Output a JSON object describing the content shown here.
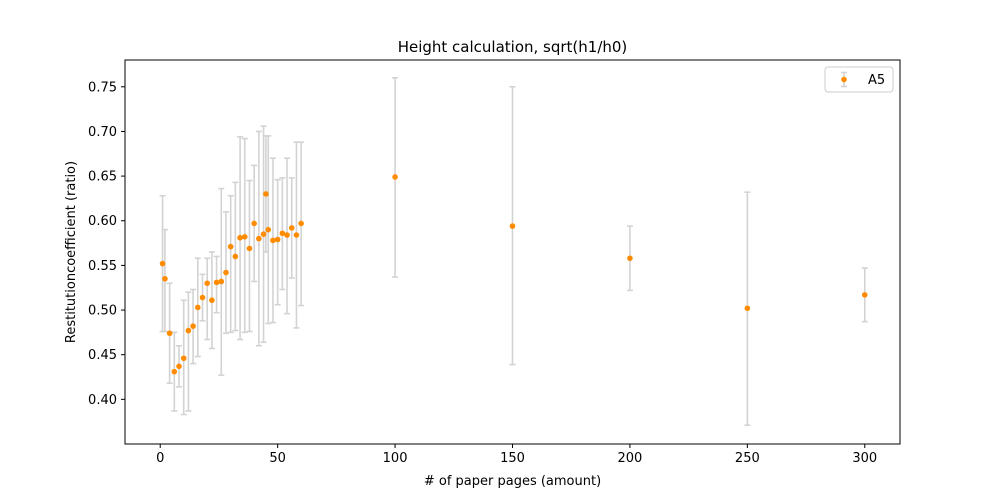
{
  "chart_data": {
    "type": "scatter",
    "title": "Height calculation, sqrt(h1/h0)",
    "xlabel": "# of paper pages (amount)",
    "ylabel": "Restitutioncoefficient (ratio)",
    "xlim": [
      -15,
      315
    ],
    "ylim": [
      0.35,
      0.78
    ],
    "xticks": [
      0,
      50,
      100,
      150,
      200,
      250,
      300
    ],
    "yticks": [
      0.4,
      0.45,
      0.5,
      0.55,
      0.6,
      0.65,
      0.7,
      0.75
    ],
    "grid": false,
    "legend": "top-right",
    "marker_color": "#ff8c00",
    "errorbar_color": "#d3d3d3",
    "series": [
      {
        "name": "A5",
        "points": [
          {
            "x": 1,
            "y": 0.552,
            "lo": 0.476,
            "hi": 0.628
          },
          {
            "x": 2,
            "y": 0.535,
            "lo": 0.476,
            "hi": 0.59
          },
          {
            "x": 4,
            "y": 0.474,
            "lo": 0.418,
            "hi": 0.53
          },
          {
            "x": 6,
            "y": 0.431,
            "lo": 0.387,
            "hi": 0.475
          },
          {
            "x": 8,
            "y": 0.437,
            "lo": 0.414,
            "hi": 0.46
          },
          {
            "x": 10,
            "y": 0.446,
            "lo": 0.383,
            "hi": 0.511
          },
          {
            "x": 12,
            "y": 0.477,
            "lo": 0.387,
            "hi": 0.52
          },
          {
            "x": 14,
            "y": 0.482,
            "lo": 0.44,
            "hi": 0.523
          },
          {
            "x": 16,
            "y": 0.503,
            "lo": 0.448,
            "hi": 0.558
          },
          {
            "x": 18,
            "y": 0.514,
            "lo": 0.488,
            "hi": 0.54
          },
          {
            "x": 20,
            "y": 0.53,
            "lo": 0.467,
            "hi": 0.558
          },
          {
            "x": 22,
            "y": 0.511,
            "lo": 0.457,
            "hi": 0.565
          },
          {
            "x": 24,
            "y": 0.531,
            "lo": 0.497,
            "hi": 0.56
          },
          {
            "x": 26,
            "y": 0.532,
            "lo": 0.427,
            "hi": 0.636
          },
          {
            "x": 28,
            "y": 0.542,
            "lo": 0.474,
            "hi": 0.61
          },
          {
            "x": 30,
            "y": 0.571,
            "lo": 0.475,
            "hi": 0.628
          },
          {
            "x": 32,
            "y": 0.56,
            "lo": 0.477,
            "hi": 0.643
          },
          {
            "x": 34,
            "y": 0.581,
            "lo": 0.467,
            "hi": 0.694
          },
          {
            "x": 36,
            "y": 0.582,
            "lo": 0.475,
            "hi": 0.692
          },
          {
            "x": 38,
            "y": 0.569,
            "lo": 0.476,
            "hi": 0.645
          },
          {
            "x": 40,
            "y": 0.597,
            "lo": 0.532,
            "hi": 0.662
          },
          {
            "x": 42,
            "y": 0.58,
            "lo": 0.46,
            "hi": 0.7
          },
          {
            "x": 44,
            "y": 0.585,
            "lo": 0.464,
            "hi": 0.706
          },
          {
            "x": 45,
            "y": 0.63,
            "lo": 0.565,
            "hi": 0.695
          },
          {
            "x": 46,
            "y": 0.59,
            "lo": 0.485,
            "hi": 0.695
          },
          {
            "x": 48,
            "y": 0.578,
            "lo": 0.486,
            "hi": 0.67
          },
          {
            "x": 50,
            "y": 0.579,
            "lo": 0.506,
            "hi": 0.646
          },
          {
            "x": 52,
            "y": 0.586,
            "lo": 0.523,
            "hi": 0.648
          },
          {
            "x": 54,
            "y": 0.584,
            "lo": 0.496,
            "hi": 0.67
          },
          {
            "x": 56,
            "y": 0.592,
            "lo": 0.536,
            "hi": 0.648
          },
          {
            "x": 58,
            "y": 0.584,
            "lo": 0.48,
            "hi": 0.688
          },
          {
            "x": 60,
            "y": 0.597,
            "lo": 0.505,
            "hi": 0.688
          },
          {
            "x": 100,
            "y": 0.649,
            "lo": 0.537,
            "hi": 0.76
          },
          {
            "x": 150,
            "y": 0.594,
            "lo": 0.439,
            "hi": 0.75
          },
          {
            "x": 200,
            "y": 0.558,
            "lo": 0.522,
            "hi": 0.594
          },
          {
            "x": 250,
            "y": 0.502,
            "lo": 0.371,
            "hi": 0.632
          },
          {
            "x": 300,
            "y": 0.517,
            "lo": 0.487,
            "hi": 0.547
          }
        ]
      }
    ]
  }
}
